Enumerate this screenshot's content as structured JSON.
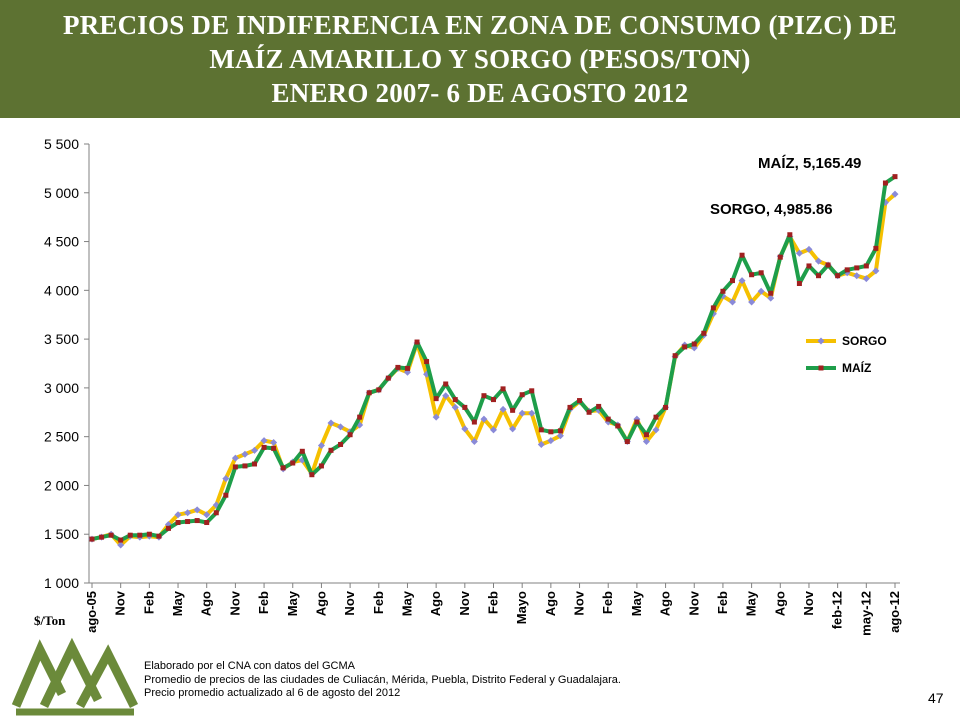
{
  "banner": {
    "title_line1": "PRECIOS DE INDIFERENCIA EN ZONA DE CONSUMO (PIZC) DE",
    "title_line2": "MAÍZ AMARILLO Y SORGO (PESOS/TON)",
    "title_line3": "ENERO 2007- 6 DE AGOSTO 2012",
    "background": "#5d7232"
  },
  "chart_data": {
    "type": "line",
    "ylabel": "$/Ton",
    "ylim": [
      1000,
      5500
    ],
    "yticks": [
      1000,
      1500,
      2000,
      2500,
      3000,
      3500,
      4000,
      4500,
      5000,
      5500
    ],
    "ytick_labels": [
      "1 000",
      "1 500",
      "2 000",
      "2 500",
      "3 000",
      "3 500",
      "4 000",
      "4 500",
      "5 000",
      "5 500"
    ],
    "x_tick_labels": [
      "ago-05",
      "Nov",
      "Feb",
      "May",
      "Ago",
      "Nov",
      "Feb",
      "May",
      "Ago",
      "Nov",
      "Feb",
      "May",
      "Ago",
      "Nov",
      "Feb",
      "Mayo",
      "Ago",
      "Nov",
      "Feb",
      "May",
      "Ago",
      "Nov",
      "Feb",
      "May",
      "Ago",
      "Nov",
      "feb-12",
      "may-12",
      "ago-12"
    ],
    "grid": false,
    "legend_position": "right",
    "series": [
      {
        "name": "SORGO",
        "color": "#f5c000",
        "marker_color": "#8a8ad8",
        "values": [
          1450,
          1470,
          1500,
          1390,
          1480,
          1470,
          1480,
          1470,
          1600,
          1700,
          1720,
          1750,
          1700,
          1800,
          2070,
          2280,
          2320,
          2360,
          2460,
          2440,
          2170,
          2240,
          2260,
          2120,
          2410,
          2640,
          2600,
          2550,
          2620,
          2950,
          2980,
          3100,
          3200,
          3160,
          3460,
          3140,
          2700,
          2920,
          2800,
          2580,
          2450,
          2680,
          2570,
          2780,
          2580,
          2740,
          2740,
          2420,
          2460,
          2510,
          2780,
          2860,
          2760,
          2770,
          2650,
          2620,
          2450,
          2680,
          2450,
          2570,
          2800,
          3320,
          3440,
          3410,
          3540,
          3760,
          3940,
          3880,
          4100,
          3880,
          3990,
          3920,
          4350,
          4550,
          4380,
          4420,
          4300,
          4260,
          4150,
          4180,
          4150,
          4120,
          4200,
          4900,
          4985.86
        ]
      },
      {
        "name": "MAÍZ",
        "color": "#1e9e4a",
        "marker_color": "#a02020",
        "values": [
          1450,
          1470,
          1490,
          1440,
          1490,
          1490,
          1500,
          1480,
          1560,
          1620,
          1630,
          1640,
          1620,
          1720,
          1900,
          2190,
          2200,
          2220,
          2390,
          2380,
          2180,
          2230,
          2350,
          2110,
          2200,
          2360,
          2420,
          2520,
          2700,
          2950,
          2980,
          3100,
          3210,
          3200,
          3470,
          3270,
          2890,
          3040,
          2880,
          2800,
          2650,
          2920,
          2880,
          2990,
          2770,
          2930,
          2970,
          2570,
          2550,
          2560,
          2800,
          2870,
          2750,
          2810,
          2680,
          2610,
          2450,
          2650,
          2520,
          2700,
          2800,
          3330,
          3420,
          3450,
          3560,
          3820,
          3990,
          4100,
          4360,
          4160,
          4180,
          3970,
          4340,
          4570,
          4070,
          4250,
          4150,
          4260,
          4150,
          4210,
          4230,
          4250,
          4430,
          5100,
          5165.49
        ]
      }
    ],
    "annotations": [
      {
        "series": "MAÍZ",
        "text": "MAÍZ, 5,165.49"
      },
      {
        "series": "SORGO",
        "text": "SORGO, 4,985.86"
      }
    ]
  },
  "footer": {
    "line1": "Elaborado por el CNA con datos del GCMA",
    "line2": "Promedio de precios de las ciudades de Culiacán, Mérida, Puebla, Distrito Federal y Guadalajara.",
    "line3": "Precio promedio actualizado al  6 de agosto del 2012"
  },
  "page_number": "47",
  "logo_icon": "cna-mountains-logo-icon",
  "logo_color": "#6b8a3a"
}
